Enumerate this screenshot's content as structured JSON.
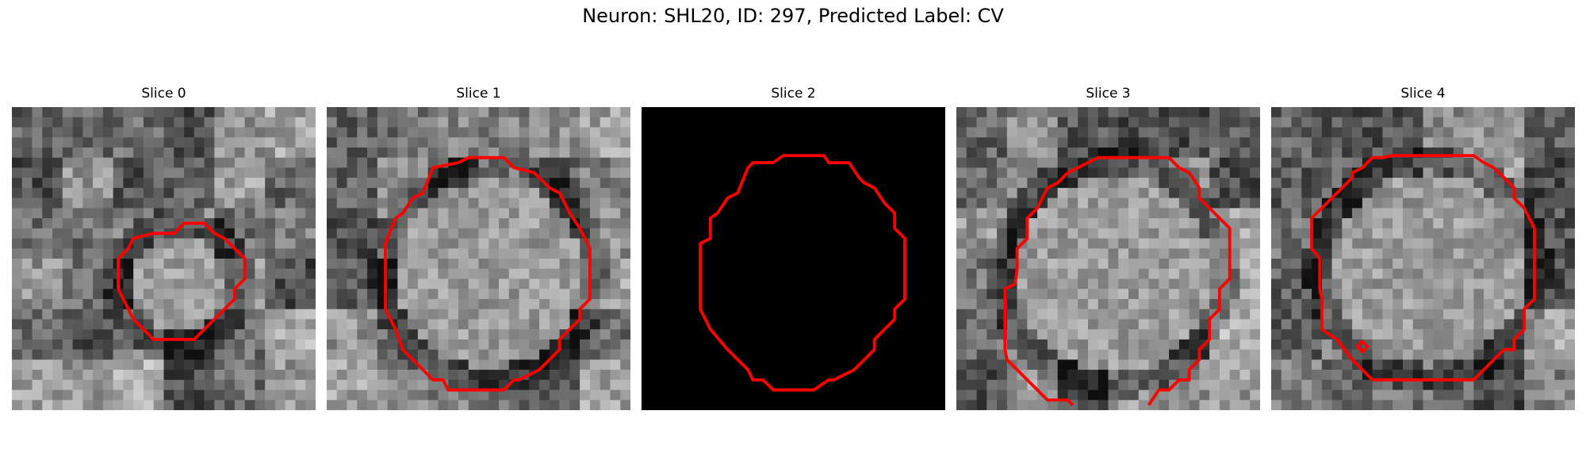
{
  "figure": {
    "title": "Neuron: SHL20, ID: 297, Predicted Label: CV"
  },
  "panels": [
    {
      "title": "Slice 0",
      "image": "grayscale-microscopy-patch",
      "contour_color": "#ff0000"
    },
    {
      "title": "Slice 1",
      "image": "grayscale-microscopy-patch",
      "contour_color": "#ff0000"
    },
    {
      "title": "Slice 2",
      "image": "black-patch",
      "contour_color": "#ff0000"
    },
    {
      "title": "Slice 3",
      "image": "grayscale-microscopy-patch",
      "contour_color": "#ff0000"
    },
    {
      "title": "Slice 4",
      "image": "grayscale-microscopy-patch",
      "contour_color": "#ff0000"
    }
  ]
}
